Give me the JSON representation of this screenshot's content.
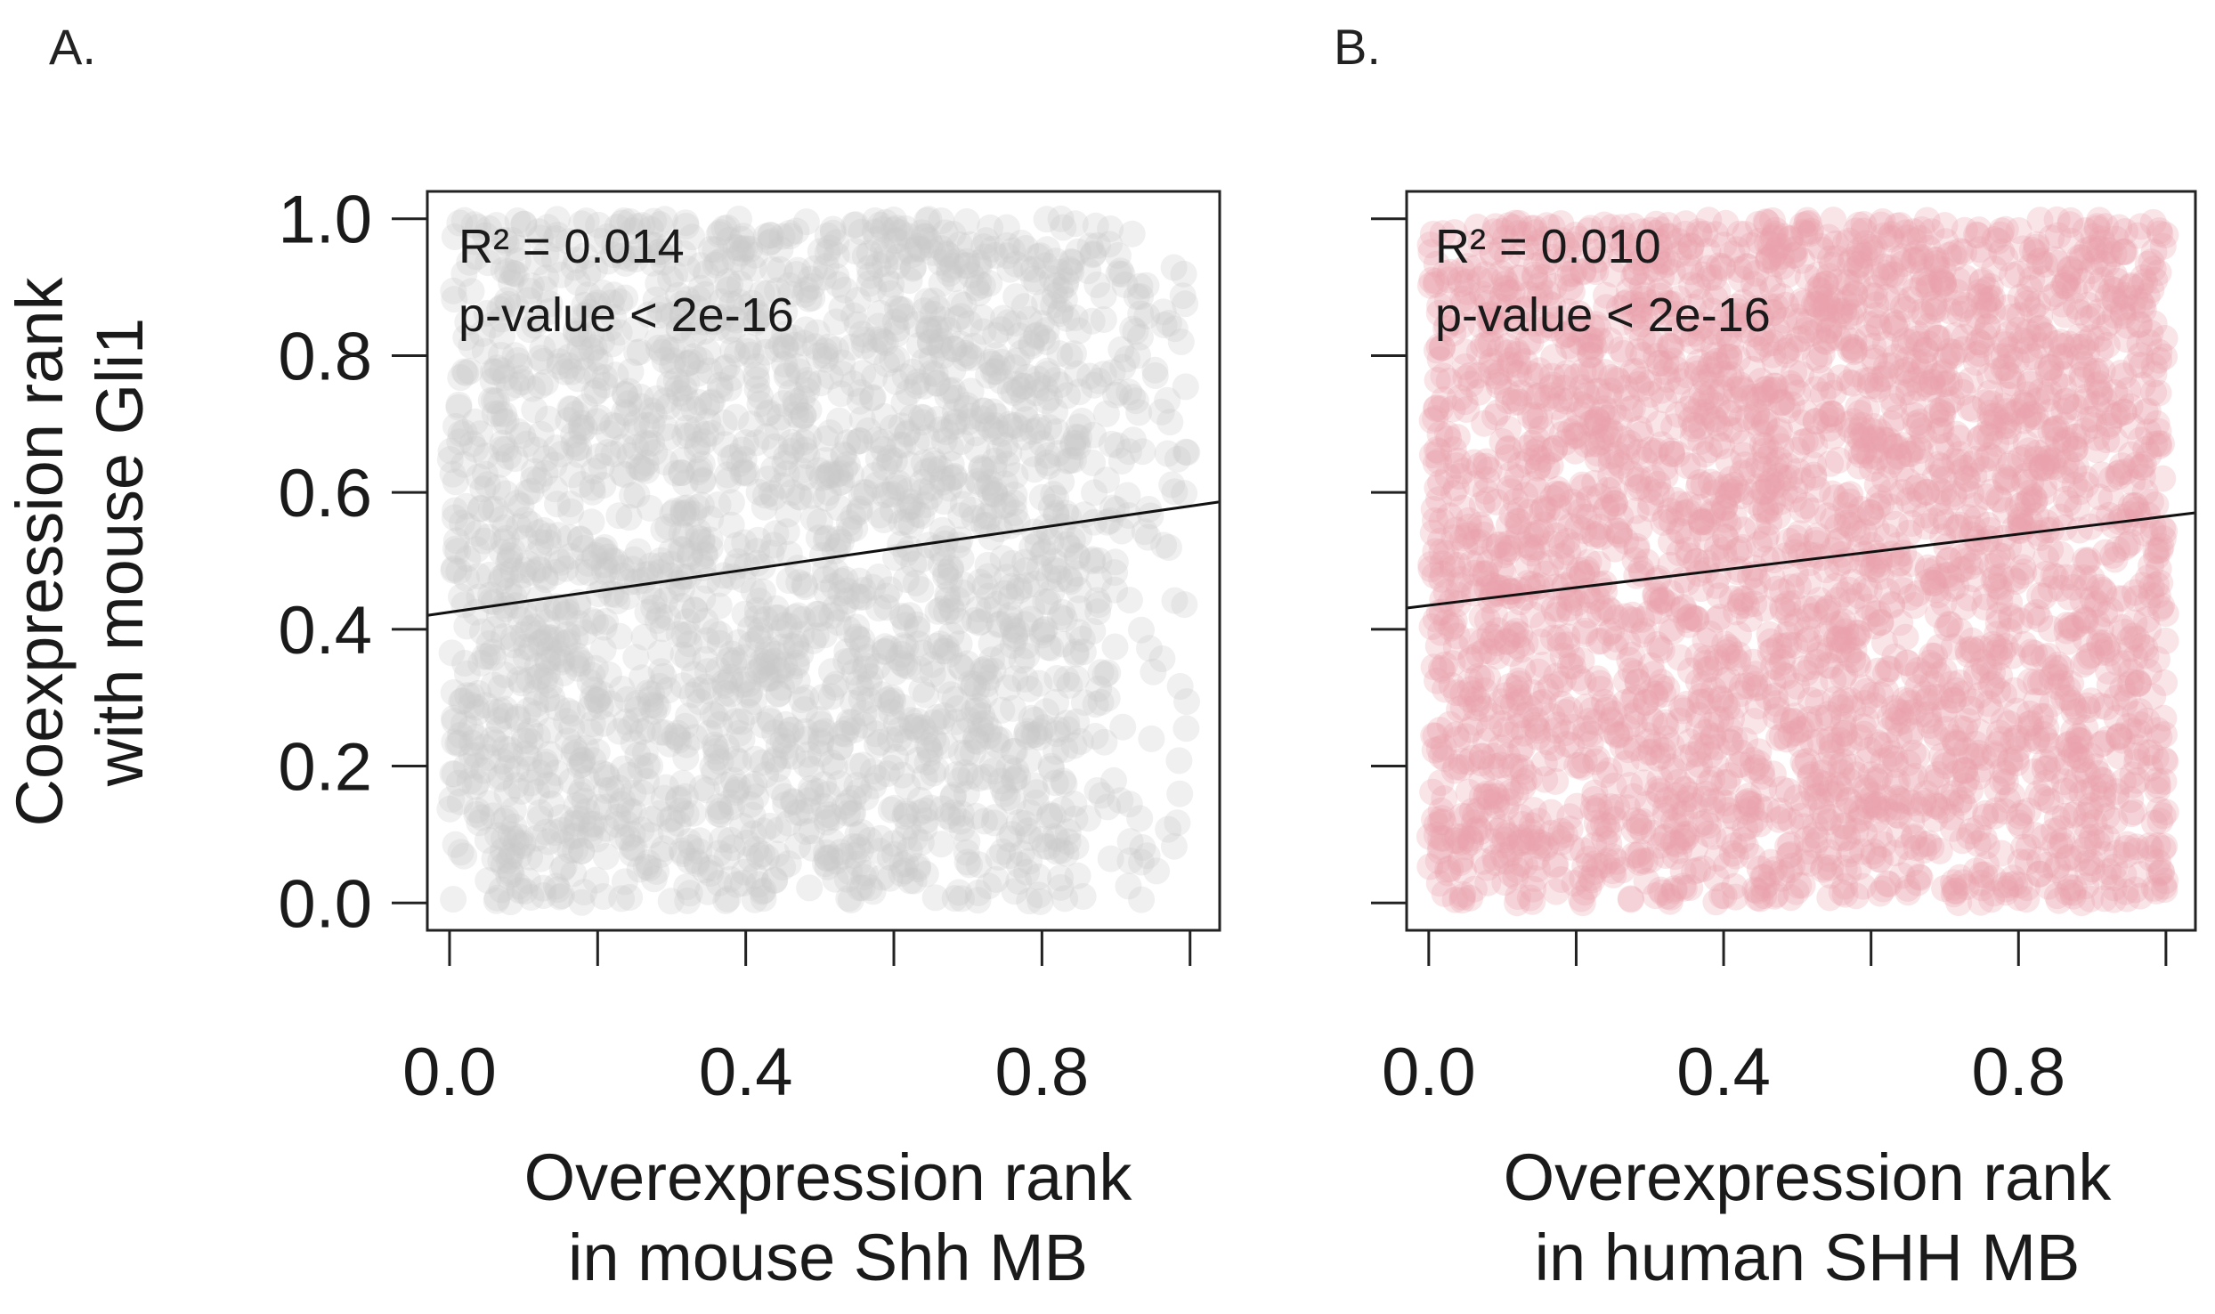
{
  "chart_data": [
    {
      "panel_label": "A.",
      "type": "scatter",
      "point_color": "#c8c8c8",
      "n_points": 2800,
      "xlabel_lines": [
        "Overexpression rank",
        "in mouse Shh MB"
      ],
      "ylabel_lines": [
        "Coexpression rank",
        "with mouse Gli1"
      ],
      "xlim": [
        -0.03,
        1.04
      ],
      "ylim": [
        -0.04,
        1.04
      ],
      "x_ticks": [
        0.0,
        0.2,
        0.4,
        0.6,
        0.8,
        1.0
      ],
      "x_tick_labels": [
        {
          "value": 0.0,
          "label": "0.0"
        },
        {
          "value": 0.4,
          "label": "0.4"
        },
        {
          "value": 0.8,
          "label": "0.8"
        }
      ],
      "y_ticks": [
        0.0,
        0.2,
        0.4,
        0.6,
        0.8,
        1.0
      ],
      "y_tick_labels": [
        {
          "value": 0.0,
          "label": "0.0"
        },
        {
          "value": 0.2,
          "label": "0.2"
        },
        {
          "value": 0.4,
          "label": "0.4"
        },
        {
          "value": 0.6,
          "label": "0.6"
        },
        {
          "value": 0.8,
          "label": "0.8"
        },
        {
          "value": 1.0,
          "label": "1.0"
        }
      ],
      "fit_line": {
        "intercept": 0.425,
        "slope": 0.155
      },
      "annotations": [
        "R² = 0.014",
        "p-value < 2e-16"
      ]
    },
    {
      "panel_label": "B.",
      "type": "scatter",
      "point_color": "#e8a0ac",
      "n_points": 3600,
      "xlabel_lines": [
        "Overexpression rank",
        "in human SHH MB"
      ],
      "ylabel_lines": [],
      "xlim": [
        -0.03,
        1.04
      ],
      "ylim": [
        -0.04,
        1.04
      ],
      "x_ticks": [
        0.0,
        0.2,
        0.4,
        0.6,
        0.8,
        1.0
      ],
      "x_tick_labels": [
        {
          "value": 0.0,
          "label": "0.0"
        },
        {
          "value": 0.4,
          "label": "0.4"
        },
        {
          "value": 0.8,
          "label": "0.8"
        }
      ],
      "y_ticks": [
        0.0,
        0.2,
        0.4,
        0.6,
        0.8,
        1.0
      ],
      "y_tick_labels": [],
      "fit_line": {
        "intercept": 0.435,
        "slope": 0.13
      },
      "annotations": [
        "R² = 0.010",
        "p-value < 2e-16"
      ]
    }
  ]
}
